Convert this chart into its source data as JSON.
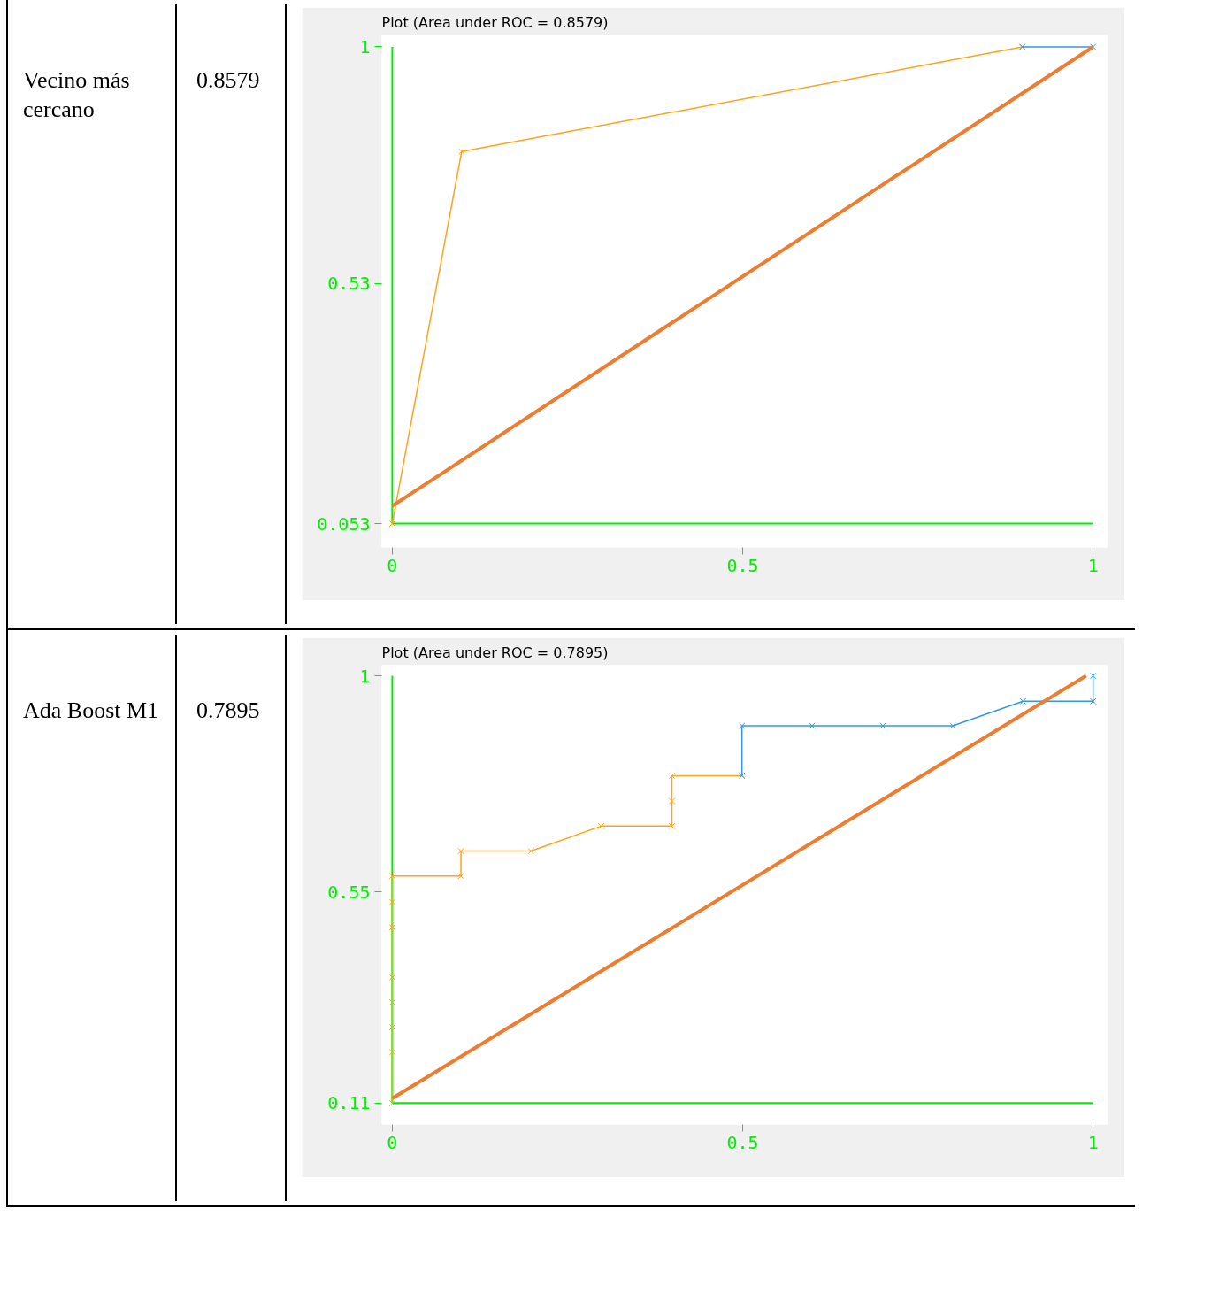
{
  "chart_data": [
    {
      "type": "other",
      "annotations": [
        "Vecino más cercano",
        "0.8579"
      ]
    },
    {
      "type": "line",
      "title": "Plot (Area under ROC = 0.8579)",
      "xlim": [
        0,
        1
      ],
      "ylim": [
        0.053,
        1
      ],
      "xticks": [
        0,
        0.5,
        1
      ],
      "yticks": [
        0.053,
        0.53,
        1
      ],
      "grid": false,
      "marker": "cross",
      "line_style": "solid",
      "series": [
        {
          "color": "#ffa31a",
          "x": [
            0,
            0.099,
            0.899
          ],
          "values": [
            0.053,
            0.792,
            1
          ]
        },
        {
          "color": "#3399dd",
          "x": [
            0.899,
            1
          ],
          "values": [
            1,
            1
          ]
        },
        {
          "color": "#ed7d31",
          "marker": "none",
          "x": [
            0,
            1
          ],
          "values": [
            0.088,
            1
          ]
        }
      ]
    },
    {
      "type": "other",
      "annotations": [
        "Ada Boost M1",
        "0.7895"
      ]
    },
    {
      "type": "line",
      "title": "Plot (Area under ROC = 0.7895)",
      "xlim": [
        0,
        1
      ],
      "ylim": [
        0.11,
        1
      ],
      "xticks": [
        0,
        0.5,
        1
      ],
      "yticks": [
        0.11,
        0.55,
        1
      ],
      "grid": false,
      "marker": "cross",
      "line_style": "solid",
      "series": [
        {
          "color": "#ffa31a",
          "x": [
            0,
            0,
            0,
            0,
            0,
            0,
            0,
            0,
            0.098,
            0.098,
            0.198,
            0.298,
            0.399,
            0.399,
            0.399,
            0.499
          ],
          "values": [
            0.11,
            0.216,
            0.268,
            0.32,
            0.372,
            0.476,
            0.529,
            0.583,
            0.583,
            0.635,
            0.635,
            0.687,
            0.687,
            0.739,
            0.792,
            0.792
          ]
        },
        {
          "color": "#3399dd",
          "x": [
            0.499,
            0.499,
            0.599,
            0.7,
            0.8,
            0.9,
            1,
            1
          ],
          "values": [
            0.792,
            0.896,
            0.896,
            0.896,
            0.896,
            0.947,
            0.947,
            1
          ]
        },
        {
          "color": "#ed7d31",
          "marker": "none",
          "x": [
            0,
            0.99
          ],
          "values": [
            0.12,
            1
          ]
        }
      ]
    }
  ]
}
